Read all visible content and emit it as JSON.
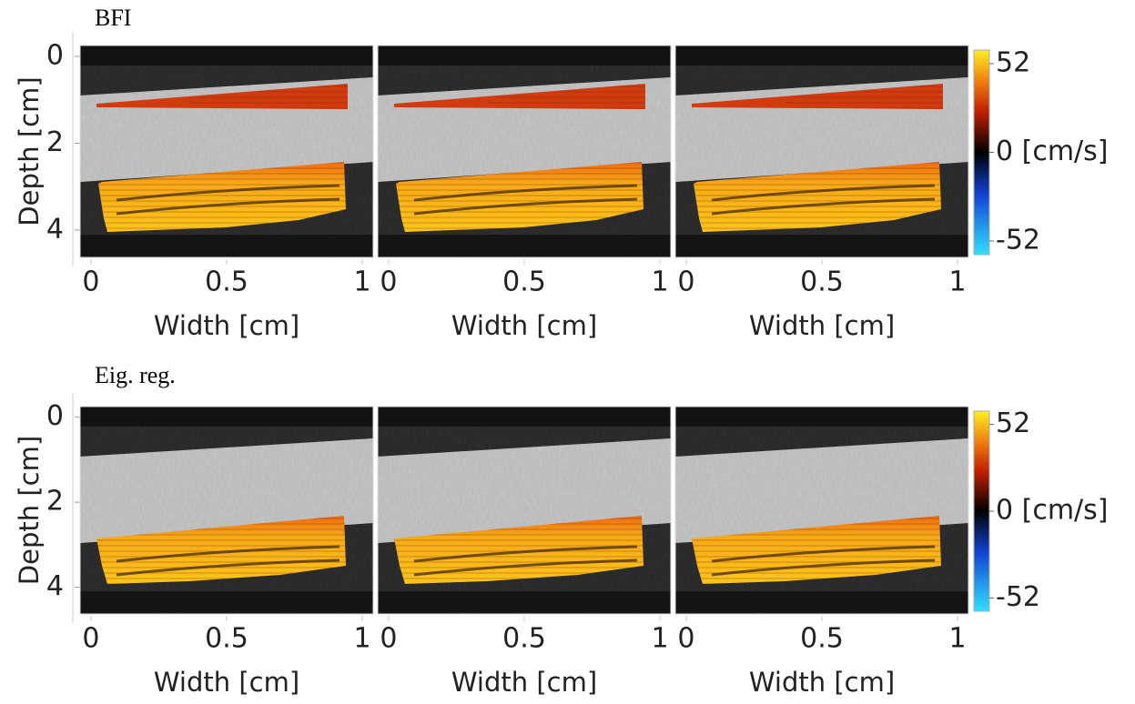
{
  "figure": {
    "rows": [
      {
        "title": "BFI",
        "y_label": "Depth [cm]",
        "y_ticks": [
          0,
          2,
          4
        ],
        "ylim": [
          -0.25,
          4.63
        ],
        "x_label": "Width [cm]",
        "x_ticks": [
          0,
          0.5,
          1
        ],
        "xlim": [
          -0.04,
          1.04
        ],
        "colorbar": {
          "ticks": [
            52,
            {
              "value": 0,
              "label": "0 [cm/s]"
            },
            -52
          ],
          "lim": [
            -60,
            60
          ]
        }
      },
      {
        "title": "Eig. reg.",
        "y_label": "Depth [cm]",
        "y_ticks": [
          0,
          2,
          4
        ],
        "ylim": [
          -0.25,
          4.63
        ],
        "x_label": "Width [cm]",
        "x_ticks": [
          0,
          0.5,
          1
        ],
        "xlim": [
          -0.04,
          1.04
        ],
        "colorbar": {
          "ticks": [
            52,
            {
              "value": 0,
              "label": "0 [cm/s]"
            },
            -52
          ],
          "lim": [
            -60,
            60
          ]
        }
      }
    ]
  }
}
